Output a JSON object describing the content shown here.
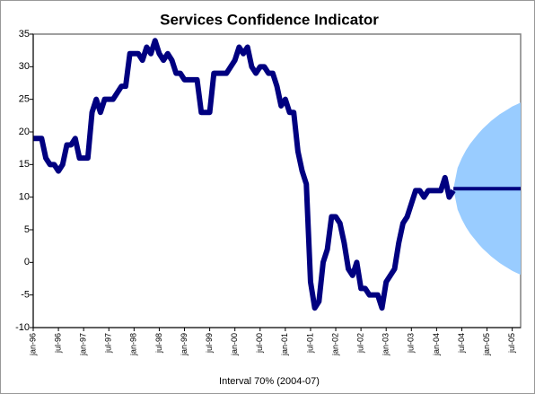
{
  "chart_data": {
    "type": "line",
    "title": "Services Confidence Indicator",
    "categories": [
      "jan-96",
      null,
      null,
      null,
      null,
      null,
      "jul-96",
      null,
      null,
      null,
      null,
      null,
      "jan-97",
      null,
      null,
      null,
      null,
      null,
      "jul-97",
      null,
      null,
      null,
      null,
      null,
      "jan-98",
      null,
      null,
      null,
      null,
      null,
      "jul-98",
      null,
      null,
      null,
      null,
      null,
      "jan-99",
      null,
      null,
      null,
      null,
      null,
      "jul-99",
      null,
      null,
      null,
      null,
      null,
      "jan-00",
      null,
      null,
      null,
      null,
      null,
      "jul-00",
      null,
      null,
      null,
      null,
      null,
      "jan-01",
      null,
      null,
      null,
      null,
      null,
      "jul-01",
      null,
      null,
      null,
      null,
      null,
      "jan-02",
      null,
      null,
      null,
      null,
      null,
      "jul-02",
      null,
      null,
      null,
      null,
      null,
      "jan-03",
      null,
      null,
      null,
      null,
      null,
      "jul-03",
      null,
      null,
      null,
      null,
      null,
      "jan-04",
      null,
      null,
      null,
      null,
      null,
      "jul-04",
      null,
      null,
      null,
      null,
      null,
      "jan-05",
      null,
      null,
      null,
      null,
      null,
      "jul-05",
      null,
      null
    ],
    "series": [
      {
        "color": "#000080",
        "values": [
          19,
          19,
          19,
          16,
          15,
          15,
          14,
          15,
          18,
          18,
          19,
          16,
          16,
          16,
          23,
          25,
          23,
          25,
          25,
          25,
          26,
          27,
          27,
          32,
          32,
          32,
          31,
          33,
          32,
          34,
          32,
          31,
          32,
          31,
          29,
          29,
          28,
          28,
          28,
          28,
          23,
          23,
          23,
          29,
          29,
          29,
          29,
          30,
          31,
          33,
          32,
          33,
          30,
          29,
          30,
          30,
          29,
          29,
          27,
          24,
          25,
          23,
          23,
          17,
          14,
          12,
          -3,
          -7,
          -6,
          0,
          2,
          7,
          7,
          6,
          3,
          -1,
          -2,
          0,
          -4,
          -4,
          -5,
          -5,
          -5,
          -7,
          -3,
          -2,
          -1,
          3,
          6,
          7,
          9,
          11,
          11,
          10,
          11,
          11,
          11,
          11,
          13,
          10,
          11,
          null,
          null,
          null,
          null,
          null,
          null,
          null,
          null,
          null,
          null,
          null,
          null,
          null,
          null,
          null,
          null
        ]
      },
      {
        "color": "#000080",
        "values": [
          null,
          null,
          null,
          null,
          null,
          null,
          null,
          null,
          null,
          null,
          null,
          null,
          null,
          null,
          null,
          null,
          null,
          null,
          null,
          null,
          null,
          null,
          null,
          null,
          null,
          null,
          null,
          null,
          null,
          null,
          null,
          null,
          null,
          null,
          null,
          null,
          null,
          null,
          null,
          null,
          null,
          null,
          null,
          null,
          null,
          null,
          null,
          null,
          null,
          null,
          null,
          null,
          null,
          null,
          null,
          null,
          null,
          null,
          null,
          null,
          null,
          null,
          null,
          null,
          null,
          null,
          null,
          null,
          null,
          null,
          null,
          null,
          null,
          null,
          null,
          null,
          null,
          null,
          null,
          null,
          null,
          null,
          null,
          null,
          null,
          null,
          null,
          null,
          null,
          null,
          null,
          null,
          null,
          null,
          null,
          null,
          null,
          null,
          null,
          null,
          11.3,
          11.3,
          11.3,
          11.3,
          11.3,
          11.3,
          11.3,
          11.3,
          11.3,
          11.3,
          11.3,
          11.3,
          11.3,
          11.3,
          11.3,
          11.3,
          11.3
        ]
      },
      {
        "name": "Interval 70% (2004-07)",
        "color": "#99ccff",
        "upper": [
          null,
          null,
          null,
          null,
          null,
          null,
          null,
          null,
          null,
          null,
          null,
          null,
          null,
          null,
          null,
          null,
          null,
          null,
          null,
          null,
          null,
          null,
          null,
          null,
          null,
          null,
          null,
          null,
          null,
          null,
          null,
          null,
          null,
          null,
          null,
          null,
          null,
          null,
          null,
          null,
          null,
          null,
          null,
          null,
          null,
          null,
          null,
          null,
          null,
          null,
          null,
          null,
          null,
          null,
          null,
          null,
          null,
          null,
          null,
          null,
          null,
          null,
          null,
          null,
          null,
          null,
          null,
          null,
          null,
          null,
          null,
          null,
          null,
          null,
          null,
          null,
          null,
          null,
          null,
          null,
          null,
          null,
          null,
          null,
          null,
          null,
          null,
          null,
          null,
          null,
          null,
          null,
          null,
          null,
          null,
          null,
          null,
          null,
          null,
          null,
          11.3,
          14.5,
          16,
          17.2,
          18.2,
          19,
          19.8,
          20.5,
          21.1,
          21.7,
          22.2,
          22.7,
          23.1,
          23.5,
          23.9,
          24.2,
          24.5
        ],
        "lower": [
          null,
          null,
          null,
          null,
          null,
          null,
          null,
          null,
          null,
          null,
          null,
          null,
          null,
          null,
          null,
          null,
          null,
          null,
          null,
          null,
          null,
          null,
          null,
          null,
          null,
          null,
          null,
          null,
          null,
          null,
          null,
          null,
          null,
          null,
          null,
          null,
          null,
          null,
          null,
          null,
          null,
          null,
          null,
          null,
          null,
          null,
          null,
          null,
          null,
          null,
          null,
          null,
          null,
          null,
          null,
          null,
          null,
          null,
          null,
          null,
          null,
          null,
          null,
          null,
          null,
          null,
          null,
          null,
          null,
          null,
          null,
          null,
          null,
          null,
          null,
          null,
          null,
          null,
          null,
          null,
          null,
          null,
          null,
          null,
          null,
          null,
          null,
          null,
          null,
          null,
          null,
          null,
          null,
          null,
          null,
          null,
          null,
          null,
          null,
          null,
          11.3,
          8.1,
          6.6,
          5.4,
          4.4,
          3.6,
          2.8,
          2.1,
          1.5,
          0.9,
          0.4,
          -0.1,
          -0.5,
          -0.9,
          -1.3,
          -1.6,
          -1.9
        ]
      }
    ],
    "ylim": [
      -10,
      35
    ],
    "yticks": [
      -10,
      -5,
      0,
      5,
      10,
      15,
      20,
      25,
      30,
      35
    ]
  }
}
